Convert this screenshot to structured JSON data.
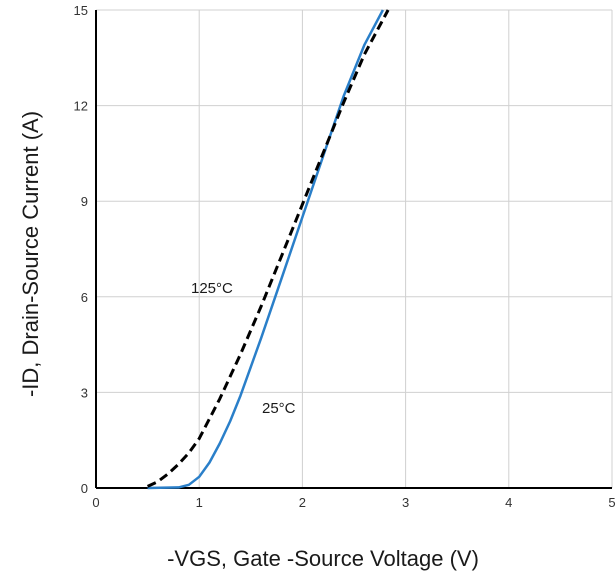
{
  "chart_data": {
    "type": "line",
    "xlabel": "-VGS, Gate -Source Voltage (V)",
    "ylabel": "-ID, Drain-Source Current (A)",
    "xlim": [
      0,
      5
    ],
    "ylim": [
      0,
      15
    ],
    "xticks": [
      0,
      1,
      2,
      3,
      4,
      5
    ],
    "yticks": [
      0,
      3,
      6,
      9,
      12,
      15
    ],
    "grid": true,
    "series": [
      {
        "name": "25°C",
        "color": "#2a7fc9",
        "style": "solid",
        "points": [
          [
            0.5,
            0.0
          ],
          [
            0.8,
            0.02
          ],
          [
            0.9,
            0.1
          ],
          [
            1.0,
            0.35
          ],
          [
            1.1,
            0.8
          ],
          [
            1.2,
            1.4
          ],
          [
            1.3,
            2.1
          ],
          [
            1.4,
            2.9
          ],
          [
            1.5,
            3.8
          ],
          [
            1.6,
            4.7
          ],
          [
            1.8,
            6.6
          ],
          [
            2.0,
            8.5
          ],
          [
            2.2,
            10.4
          ],
          [
            2.4,
            12.3
          ],
          [
            2.6,
            13.9
          ],
          [
            2.78,
            15.0
          ]
        ]
      },
      {
        "name": "125°C",
        "color": "#000000",
        "style": "dashed",
        "points": [
          [
            0.5,
            0.05
          ],
          [
            0.6,
            0.2
          ],
          [
            0.7,
            0.45
          ],
          [
            0.8,
            0.75
          ],
          [
            0.9,
            1.1
          ],
          [
            1.0,
            1.55
          ],
          [
            1.2,
            2.8
          ],
          [
            1.4,
            4.2
          ],
          [
            1.6,
            5.7
          ],
          [
            1.8,
            7.3
          ],
          [
            2.0,
            8.9
          ],
          [
            2.2,
            10.5
          ],
          [
            2.4,
            12.1
          ],
          [
            2.6,
            13.6
          ],
          [
            2.83,
            15.0
          ]
        ]
      }
    ]
  }
}
